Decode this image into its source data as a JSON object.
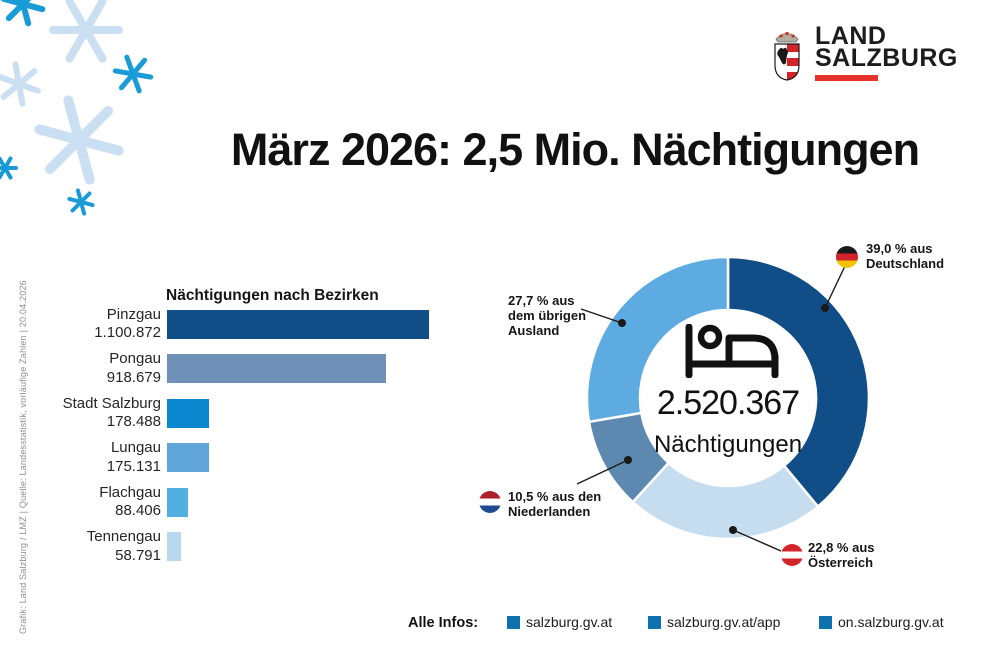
{
  "logo": {
    "line1": "LAND",
    "line2": "SALZBURG"
  },
  "title": "März 2026: 2,5 Mio. Nächtigungen",
  "source_caption": "Grafik: Land Salzburg / LMZ | Quelle: Landesstatistik, vorläufige Zahlen | 20.04.2026",
  "colors": {
    "brand_red": "#e5332a",
    "snow_dark": "#199bd8",
    "snow_light": "#cadff2",
    "leader_line": "#1a1a1a"
  },
  "chart_data": [
    {
      "type": "bar",
      "orientation": "horizontal",
      "title": "Nächtigungen nach Bezirken",
      "categories": [
        "Pinzgau",
        "Pongau",
        "Stadt Salzburg",
        "Lungau",
        "Flachgau",
        "Tennengau"
      ],
      "values": [
        1100872,
        918679,
        178488,
        175131,
        88406,
        58791
      ],
      "value_labels": [
        "1.100.872",
        "918.679",
        "178.488",
        "175.131",
        "88.406",
        "58.791"
      ],
      "bar_colors": [
        "#114e87",
        "#6f91b8",
        "#0a87ce",
        "#5fa5d9",
        "#52afe1",
        "#b9d7ee"
      ],
      "xlim": [
        0,
        1100872
      ]
    },
    {
      "type": "donut",
      "center_value": "2.520.367",
      "center_label": "Nächtigungen",
      "center_icon": "bed-icon",
      "slices": [
        {
          "id": "deutschland",
          "name": "Deutschland",
          "pct": 39.0,
          "color": "#114e87"
        },
        {
          "id": "oesterreich",
          "name": "Österreich",
          "pct": 22.8,
          "color": "#c6ddef"
        },
        {
          "id": "niederlande",
          "name": "Niederlanden",
          "pct": 10.5,
          "color": "#5d88af"
        },
        {
          "id": "uebriges-ausland",
          "name": "übriges Ausland",
          "pct": 27.7,
          "color": "#5dabe0"
        }
      ],
      "callouts": [
        {
          "flag": "germany",
          "lines": [
            "39,0 % aus",
            "Deutschland"
          ]
        },
        {
          "flag": "austria",
          "lines": [
            "22,8 % aus",
            "Österreich"
          ]
        },
        {
          "flag": "netherlands",
          "lines": [
            "10,5 % aus den",
            "Niederlanden"
          ]
        },
        {
          "flag": null,
          "lines": [
            "27,7 % aus",
            "dem übrigen",
            "Ausland"
          ]
        }
      ]
    }
  ],
  "footer": {
    "label": "Alle Infos:",
    "links": [
      "salzburg.gv.at",
      "salzburg.gv.at/app",
      "on.salzburg.gv.at"
    ],
    "bullet_color": "#0e72ae"
  }
}
